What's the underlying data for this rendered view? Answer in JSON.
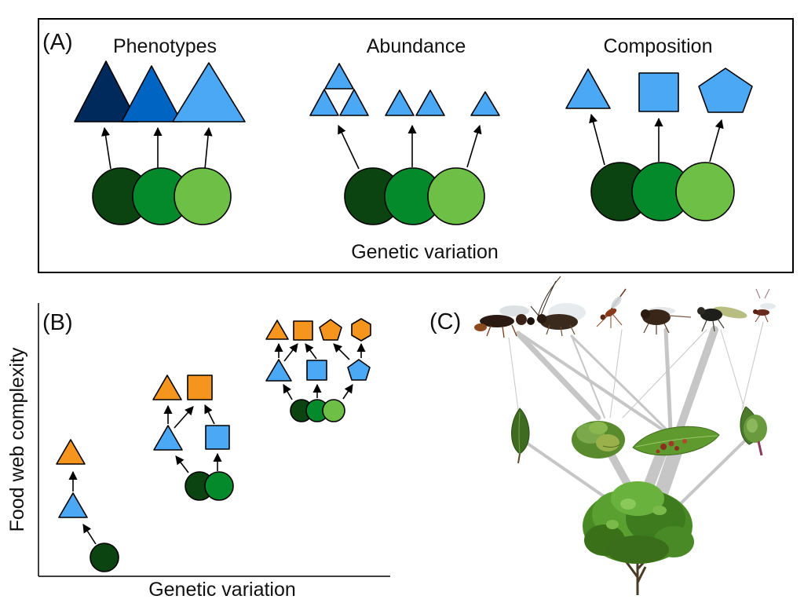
{
  "panel_a": {
    "label": "(A)",
    "headings": [
      "Phenotypes",
      "Abundance",
      "Composition"
    ],
    "xlabel": "Genetic variation"
  },
  "panel_b": {
    "label": "(B)",
    "xlabel": "Genetic variation",
    "ylabel": "Food web complexity"
  },
  "panel_c": {
    "label": "(C)",
    "insect_icons": [
      "parasitoid-wasp-icon",
      "winged-insect-icon",
      "midge-icon",
      "weevil-icon",
      "fly-icon",
      "small-wasp-icon"
    ],
    "gall_icons": [
      "leaf-fold-gall-icon",
      "leaf-rosette-gall-icon",
      "leaf-spot-gall-icon",
      "bud-gall-icon"
    ],
    "host_plant_icon": "willow-shrub-icon"
  },
  "colors": {
    "green_dark": "#0b4410",
    "green_mid": "#058a2b",
    "green_light": "#6dbf45",
    "blue_dark": "#002a5c",
    "blue_mid": "#0064c2",
    "blue_light": "#4aa8f4",
    "orange": "#f6951e"
  }
}
